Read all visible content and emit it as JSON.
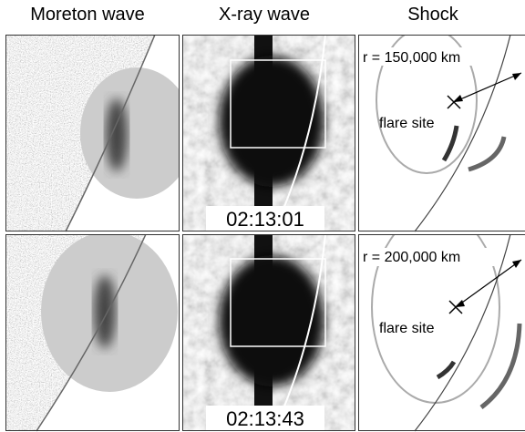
{
  "headers": [
    "Moreton wave",
    "X-ray wave",
    "Shock"
  ],
  "rows": [
    {
      "time": "02:13:01",
      "radius": "r = 150,000 km",
      "site": "flare site"
    },
    {
      "time": "02:13:43",
      "radius": "r = 200,000 km",
      "site": "flare site"
    }
  ]
}
